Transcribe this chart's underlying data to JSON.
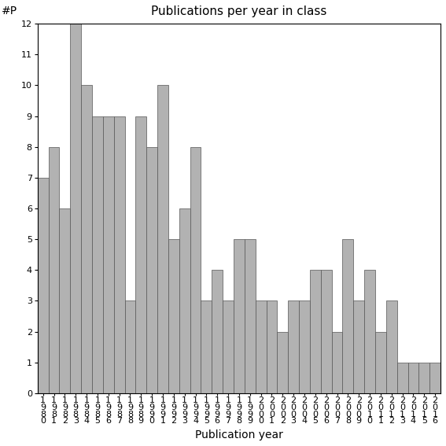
{
  "title": "Publications per year in class",
  "xlabel": "Publication year",
  "ylabel": "#P",
  "categories": [
    "1980",
    "1981",
    "1982",
    "1983",
    "1984",
    "1985",
    "1986",
    "1987",
    "1988",
    "1989",
    "1990",
    "1991",
    "1992",
    "1993",
    "1994",
    "1995",
    "1996",
    "1997",
    "1998",
    "1999",
    "2000",
    "2001",
    "2002",
    "2003",
    "2004",
    "2005",
    "2006",
    "2007",
    "2008",
    "2009",
    "2010",
    "2011",
    "2012",
    "2013",
    "2014",
    "2015",
    "2016"
  ],
  "values": [
    7,
    8,
    6,
    12,
    10,
    9,
    9,
    9,
    3,
    9,
    8,
    10,
    5,
    6,
    8,
    3,
    4,
    3,
    5,
    5,
    3,
    3,
    2,
    3,
    3,
    4,
    4,
    2,
    5,
    3,
    4,
    2,
    3,
    1,
    1,
    1,
    1
  ],
  "bar_color": "#b2b2b2",
  "bar_edge_color": "#555555",
  "ylim": [
    0,
    12
  ],
  "yticks": [
    0,
    1,
    2,
    3,
    4,
    5,
    6,
    7,
    8,
    9,
    10,
    11,
    12
  ],
  "background_color": "#ffffff",
  "title_fontsize": 11,
  "axis_label_fontsize": 10,
  "tick_fontsize": 8
}
